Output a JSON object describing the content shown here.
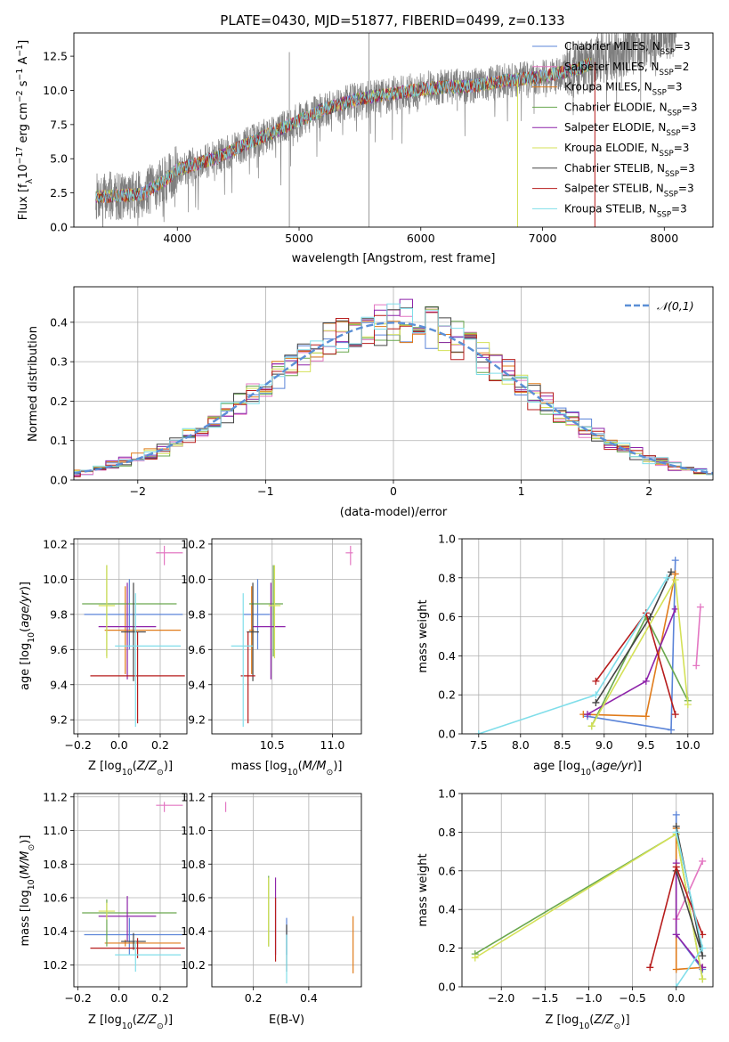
{
  "figure": {
    "title": "PLATE=0430, MJD=51877, FIBERID=0499, z=0.133",
    "colors": {
      "Chabrier MILES": "#5b84d8",
      "Salpeter MILES": "#e377c2",
      "Kroupa MILES": "#e07b1a",
      "Chabrier ELODIE": "#6aa84f",
      "Salpeter ELODIE": "#8e24aa",
      "Kroupa ELODIE": "#d4e157",
      "Chabrier STELIB": "#444444",
      "Salpeter STELIB": "#b71c1c",
      "Kroupa STELIB": "#80deea",
      "data": "#7f7f7f",
      "normal": "#5b8fd6"
    }
  },
  "chart_data": [
    {
      "id": "spectrum",
      "type": "line",
      "xlabel": "wavelength [Angstrom, rest frame]",
      "ylabel": "Flux [f",
      "ylabel_parts": [
        "Flux [f",
        "λ",
        "10",
        "−17",
        " erg cm",
        "−2",
        " s",
        "−1",
        " A",
        "−1",
        "]"
      ],
      "xlim": [
        3150,
        8400
      ],
      "ylim": [
        0,
        14.2
      ],
      "xticks": [
        4000,
        5000,
        6000,
        7000,
        8000
      ],
      "yticks": [
        0.0,
        2.5,
        5.0,
        7.5,
        10.0,
        12.5
      ],
      "grid": false,
      "legend_position": "top-right",
      "legend": [
        {
          "main": "Chabrier MILES, N",
          "sub": "SSP",
          "tail": "=3"
        },
        {
          "main": "Salpeter MILES, N",
          "sub": "SSP",
          "tail": "=2"
        },
        {
          "main": "Kroupa MILES, N",
          "sub": "SSP",
          "tail": "=3"
        },
        {
          "main": "Chabrier ELODIE, N",
          "sub": "SSP",
          "tail": "=3"
        },
        {
          "main": "Salpeter ELODIE, N",
          "sub": "SSP",
          "tail": "=3"
        },
        {
          "main": "Kroupa ELODIE, N",
          "sub": "SSP",
          "tail": "=3"
        },
        {
          "main": "Chabrier STELIB, N",
          "sub": "SSP",
          "tail": "=3"
        },
        {
          "main": "Salpeter STELIB, N",
          "sub": "SSP",
          "tail": "=3"
        },
        {
          "main": "Kroupa STELIB, N",
          "sub": "SSP",
          "tail": "=3"
        }
      ],
      "continuum_knots": [
        [
          3330,
          2.2
        ],
        [
          3500,
          2.3
        ],
        [
          3700,
          2.4
        ],
        [
          3900,
          3.4
        ],
        [
          4000,
          4.2
        ],
        [
          4300,
          5.0
        ],
        [
          4600,
          6.2
        ],
        [
          4900,
          7.4
        ],
        [
          5200,
          8.6
        ],
        [
          5500,
          9.4
        ],
        [
          5800,
          9.8
        ],
        [
          6100,
          10.2
        ],
        [
          6400,
          10.3
        ],
        [
          6700,
          10.7
        ],
        [
          7000,
          11.0
        ],
        [
          7300,
          11.6
        ],
        [
          7600,
          12.7
        ],
        [
          8000,
          14.1
        ],
        [
          8100,
          14.6
        ]
      ],
      "data_range": [
        3330,
        8100
      ],
      "data_spikes": [
        [
          4920,
          0,
          12.8
        ],
        [
          5575,
          0,
          15
        ],
        [
          6300,
          8.5,
          11.6
        ]
      ],
      "model_dips": [
        [
          6795,
          0
        ],
        [
          7430,
          0
        ]
      ]
    },
    {
      "id": "residuals",
      "type": "histogram",
      "xlabel": "(data-model)/error",
      "ylabel": "Normed distribution",
      "xlim": [
        -2.5,
        2.5
      ],
      "ylim": [
        0,
        0.49
      ],
      "xticks": [
        -2,
        -1,
        0,
        1,
        2
      ],
      "yticks": [
        0.0,
        0.1,
        0.2,
        0.3,
        0.4
      ],
      "grid": true,
      "legend_position": "top-right",
      "legend": [
        "𝒩(0,1)"
      ],
      "bin_width": 0.1
    },
    {
      "id": "age-vs-z",
      "type": "errorbar",
      "xlabel": "Z [log",
      "xlabel_parts": [
        "Z [log",
        "10",
        "(Z/Z",
        "⊙",
        ")]"
      ],
      "ylabel_parts": [
        "age  [log",
        "10",
        "(age/yr)]"
      ],
      "xlim": [
        -0.22,
        0.33
      ],
      "ylim": [
        9.12,
        10.23
      ],
      "xticks": [
        -0.2,
        0.0,
        0.2
      ],
      "yticks": [
        9.2,
        9.4,
        9.6,
        9.8,
        10.0,
        10.2
      ],
      "grid": true,
      "points": [
        {
          "model": "Chabrier MILES",
          "x": 0.05,
          "xerr": [
            0.22,
            0.26
          ],
          "y": 9.8,
          "yerr": [
            0.2,
            0.2
          ]
        },
        {
          "model": "Salpeter MILES",
          "x": 0.22,
          "xerr": [
            0.04,
            0.09
          ],
          "y": 10.15,
          "yerr": [
            0.07,
            0.04
          ]
        },
        {
          "model": "Kroupa MILES",
          "x": 0.03,
          "xerr": [
            0.1,
            0.27
          ],
          "y": 9.71,
          "yerr": [
            0.25,
            0.25
          ]
        },
        {
          "model": "Chabrier ELODIE",
          "x": -0.06,
          "xerr": [
            0.12,
            0.34
          ],
          "y": 9.86,
          "yerr": [
            0.3,
            0.22
          ]
        },
        {
          "model": "Salpeter ELODIE",
          "x": 0.04,
          "xerr": [
            0.14,
            0.14
          ],
          "y": 9.73,
          "yerr": [
            0.3,
            0.25
          ]
        },
        {
          "model": "Kroupa ELODIE",
          "x": -0.06,
          "xerr": [
            0.04,
            0.04
          ],
          "y": 9.85,
          "yerr": [
            0.3,
            0.23
          ]
        },
        {
          "model": "Chabrier STELIB",
          "x": 0.07,
          "xerr": [
            0.06,
            0.06
          ],
          "y": 9.7,
          "yerr": [
            0.28,
            0.28
          ]
        },
        {
          "model": "Salpeter STELIB",
          "x": 0.09,
          "xerr": [
            0.23,
            0.23
          ],
          "y": 9.45,
          "yerr": [
            0.27,
            0.25
          ]
        },
        {
          "model": "Kroupa STELIB",
          "x": 0.08,
          "xerr": [
            0.1,
            0.22
          ],
          "y": 9.62,
          "yerr": [
            0.46,
            0.3
          ]
        }
      ]
    },
    {
      "id": "age-vs-mass",
      "type": "errorbar",
      "xlabel_parts": [
        "mass [log",
        "10",
        "(M/M",
        "⊙",
        ")]"
      ],
      "xlim": [
        10.0,
        11.24
      ],
      "ylim": [
        9.12,
        10.23
      ],
      "xticks": [
        10.5,
        11.0
      ],
      "yticks": [
        9.2,
        9.4,
        9.6,
        9.8,
        10.0,
        10.2
      ],
      "grid": true,
      "points": [
        {
          "model": "Chabrier MILES",
          "x": 10.38,
          "xerr": [
            0.12,
            0.1
          ],
          "y": 9.8,
          "yerr": [
            0.2,
            0.2
          ]
        },
        {
          "model": "Salpeter MILES",
          "x": 11.15,
          "xerr": [
            0.04,
            0.02
          ],
          "y": 10.15,
          "yerr": [
            0.07,
            0.04
          ]
        },
        {
          "model": "Kroupa MILES",
          "x": 10.33,
          "xerr": [
            0.02,
            0.02
          ],
          "y": 9.71,
          "yerr": [
            0.25,
            0.25
          ]
        },
        {
          "model": "Chabrier ELODIE",
          "x": 10.51,
          "xerr": [
            0.2,
            0.08
          ],
          "y": 9.86,
          "yerr": [
            0.3,
            0.22
          ]
        },
        {
          "model": "Salpeter ELODIE",
          "x": 10.49,
          "xerr": [
            0.15,
            0.12
          ],
          "y": 9.73,
          "yerr": [
            0.3,
            0.25
          ]
        },
        {
          "model": "Kroupa ELODIE",
          "x": 10.52,
          "xerr": [
            0.05,
            0.05
          ],
          "y": 9.85,
          "yerr": [
            0.3,
            0.23
          ]
        },
        {
          "model": "Chabrier STELIB",
          "x": 10.34,
          "xerr": [
            0.05,
            0.05
          ],
          "y": 9.7,
          "yerr": [
            0.28,
            0.28
          ]
        },
        {
          "model": "Salpeter STELIB",
          "x": 10.3,
          "xerr": [
            0.06,
            0.06
          ],
          "y": 9.45,
          "yerr": [
            0.27,
            0.25
          ]
        },
        {
          "model": "Kroupa STELIB",
          "x": 10.26,
          "xerr": [
            0.1,
            0.08
          ],
          "y": 9.62,
          "yerr": [
            0.46,
            0.3
          ]
        }
      ]
    },
    {
      "id": "mass-vs-z",
      "type": "errorbar",
      "xlabel_parts": [
        "Z [log",
        "10",
        "(Z/Z",
        "⊙",
        ")]"
      ],
      "ylabel_parts": [
        "mass [log",
        "10",
        "(M/M",
        "⊙",
        ")]"
      ],
      "xlim": [
        -0.22,
        0.33
      ],
      "ylim": [
        10.07,
        11.22
      ],
      "xticks": [
        -0.2,
        0.0,
        0.2
      ],
      "yticks": [
        10.2,
        10.4,
        10.6,
        10.8,
        11.0,
        11.2
      ],
      "grid": true,
      "points": [
        {
          "model": "Chabrier MILES",
          "x": 0.05,
          "xerr": [
            0.22,
            0.26
          ],
          "y": 10.38,
          "yerr": [
            0.12,
            0.1
          ]
        },
        {
          "model": "Salpeter MILES",
          "x": 0.22,
          "xerr": [
            0.04,
            0.09
          ],
          "y": 11.15,
          "yerr": [
            0.04,
            0.02
          ]
        },
        {
          "model": "Kroupa MILES",
          "x": 0.03,
          "xerr": [
            0.1,
            0.27
          ],
          "y": 10.33,
          "yerr": [
            0.02,
            0.02
          ]
        },
        {
          "model": "Chabrier ELODIE",
          "x": -0.06,
          "xerr": [
            0.12,
            0.34
          ],
          "y": 10.51,
          "yerr": [
            0.2,
            0.08
          ]
        },
        {
          "model": "Salpeter ELODIE",
          "x": 0.04,
          "xerr": [
            0.14,
            0.14
          ],
          "y": 10.49,
          "yerr": [
            0.15,
            0.12
          ]
        },
        {
          "model": "Kroupa ELODIE",
          "x": -0.06,
          "xerr": [
            0.04,
            0.04
          ],
          "y": 10.52,
          "yerr": [
            0.05,
            0.05
          ]
        },
        {
          "model": "Chabrier STELIB",
          "x": 0.07,
          "xerr": [
            0.06,
            0.06
          ],
          "y": 10.34,
          "yerr": [
            0.05,
            0.05
          ]
        },
        {
          "model": "Salpeter STELIB",
          "x": 0.09,
          "xerr": [
            0.23,
            0.23
          ],
          "y": 10.3,
          "yerr": [
            0.06,
            0.06
          ]
        },
        {
          "model": "Kroupa STELIB",
          "x": 0.08,
          "xerr": [
            0.1,
            0.22
          ],
          "y": 10.26,
          "yerr": [
            0.1,
            0.08
          ]
        }
      ]
    },
    {
      "id": "mass-vs-ebv",
      "type": "errorbar",
      "xlabel": "E(B-V)",
      "xlim": [
        0.05,
        0.59
      ],
      "ylim": [
        10.07,
        11.22
      ],
      "xticks": [
        0.2,
        0.4
      ],
      "yticks": [
        10.2,
        10.4,
        10.6,
        10.8,
        11.0,
        11.2
      ],
      "grid": true,
      "points": [
        {
          "model": "Chabrier MILES",
          "x": 0.32,
          "xerr": [
            0,
            0
          ],
          "y": 10.38,
          "yerr": [
            0.12,
            0.1
          ]
        },
        {
          "model": "Salpeter MILES",
          "x": 0.1,
          "xerr": [
            0,
            0
          ],
          "y": 11.15,
          "yerr": [
            0.04,
            0.02
          ]
        },
        {
          "model": "Kroupa MILES",
          "x": 0.56,
          "xerr": [
            0,
            0
          ],
          "y": 10.33,
          "yerr": [
            0.18,
            0.16
          ]
        },
        {
          "model": "Chabrier ELODIE",
          "x": 0.255,
          "xerr": [
            0,
            0
          ],
          "y": 10.51,
          "yerr": [
            0.2,
            0.22
          ]
        },
        {
          "model": "Salpeter ELODIE",
          "x": 0.28,
          "xerr": [
            0,
            0
          ],
          "y": 10.49,
          "yerr": [
            0.23,
            0.23
          ]
        },
        {
          "model": "Kroupa ELODIE",
          "x": 0.255,
          "xerr": [
            0,
            0
          ],
          "y": 10.52,
          "yerr": [
            0.21,
            0.2
          ]
        },
        {
          "model": "Chabrier STELIB",
          "x": 0.32,
          "xerr": [
            0,
            0
          ],
          "y": 10.34,
          "yerr": [
            0.18,
            0.1
          ]
        },
        {
          "model": "Salpeter STELIB",
          "x": 0.28,
          "xerr": [
            0,
            0
          ],
          "y": 10.3,
          "yerr": [
            0.08,
            0.3
          ]
        },
        {
          "model": "Kroupa STELIB",
          "x": 0.32,
          "xerr": [
            0,
            0
          ],
          "y": 10.26,
          "yerr": [
            0.17,
            0.12
          ]
        }
      ]
    },
    {
      "id": "weight-vs-age",
      "type": "line",
      "xlabel_parts": [
        "age  [log",
        "10",
        "(age/yr)]"
      ],
      "ylabel": "mass weight",
      "xlim": [
        7.3,
        10.3
      ],
      "ylim": [
        0,
        1
      ],
      "xticks": [
        7.5,
        8.0,
        8.5,
        9.0,
        9.5,
        10.0
      ],
      "yticks": [
        0.0,
        0.2,
        0.4,
        0.6,
        0.8,
        1.0
      ],
      "grid": true,
      "series": [
        {
          "model": "Chabrier MILES",
          "x": [
            8.8,
            9.8,
            9.85
          ],
          "y": [
            0.09,
            0.02,
            0.89
          ]
        },
        {
          "model": "Salpeter MILES",
          "x": [
            10.1,
            10.15
          ],
          "y": [
            0.35,
            0.65
          ]
        },
        {
          "model": "Kroupa MILES",
          "x": [
            8.75,
            9.5,
            9.85
          ],
          "y": [
            0.1,
            0.09,
            0.82
          ]
        },
        {
          "model": "Chabrier ELODIE",
          "x": [
            8.85,
            9.5,
            10.0
          ],
          "y": [
            0.04,
            0.6,
            0.17
          ]
        },
        {
          "model": "Salpeter ELODIE",
          "x": [
            8.8,
            9.5,
            9.85
          ],
          "y": [
            0.1,
            0.27,
            0.64
          ]
        },
        {
          "model": "Kroupa ELODIE",
          "x": [
            8.85,
            9.85,
            10.0
          ],
          "y": [
            0.04,
            0.79,
            0.15
          ]
        },
        {
          "model": "Chabrier STELIB",
          "x": [
            8.9,
            9.55,
            9.8
          ],
          "y": [
            0.16,
            0.6,
            0.83
          ]
        },
        {
          "model": "Salpeter STELIB",
          "x": [
            8.9,
            9.5,
            9.85
          ],
          "y": [
            0.27,
            0.62,
            0.1
          ]
        },
        {
          "model": "Kroupa STELIB",
          "x": [
            7.5,
            8.9,
            9.75
          ],
          "y": [
            0.0,
            0.2,
            0.8
          ]
        }
      ]
    },
    {
      "id": "weight-vs-z",
      "type": "line",
      "xlabel_parts": [
        "Z [log",
        "10",
        "(Z/Z",
        "⊙",
        ")]"
      ],
      "ylabel": "mass weight",
      "xlim": [
        -2.45,
        0.42
      ],
      "ylim": [
        0,
        1
      ],
      "xticks": [
        -2.0,
        -1.5,
        -1.0,
        -0.5,
        0.0
      ],
      "yticks": [
        0.0,
        0.2,
        0.4,
        0.6,
        0.8,
        1.0
      ],
      "grid": true,
      "series": [
        {
          "model": "Chabrier MILES",
          "x": [
            0.0,
            0.0,
            0.3
          ],
          "y": [
            0.89,
            0.27,
            0.09
          ]
        },
        {
          "model": "Salpeter MILES",
          "x": [
            0.0,
            0.3
          ],
          "y": [
            0.35,
            0.65
          ]
        },
        {
          "model": "Kroupa MILES",
          "x": [
            0.0,
            0.0,
            0.3
          ],
          "y": [
            0.82,
            0.09,
            0.1
          ]
        },
        {
          "model": "Chabrier ELODIE",
          "x": [
            -2.3,
            0.0,
            0.3
          ],
          "y": [
            0.17,
            0.79,
            0.04
          ]
        },
        {
          "model": "Salpeter ELODIE",
          "x": [
            0.0,
            0.0,
            0.3
          ],
          "y": [
            0.64,
            0.27,
            0.1
          ]
        },
        {
          "model": "Kroupa ELODIE",
          "x": [
            -2.3,
            0.0,
            0.3
          ],
          "y": [
            0.15,
            0.79,
            0.04
          ]
        },
        {
          "model": "Chabrier STELIB",
          "x": [
            0.0,
            0.3,
            0.0
          ],
          "y": [
            0.83,
            0.16,
            0.6
          ]
        },
        {
          "model": "Salpeter STELIB",
          "x": [
            -0.3,
            0.0,
            0.3
          ],
          "y": [
            0.1,
            0.62,
            0.27
          ]
        },
        {
          "model": "Kroupa STELIB",
          "x": [
            0.0,
            0.3,
            0.0
          ],
          "y": [
            0.8,
            0.2,
            0.0
          ]
        }
      ]
    }
  ]
}
